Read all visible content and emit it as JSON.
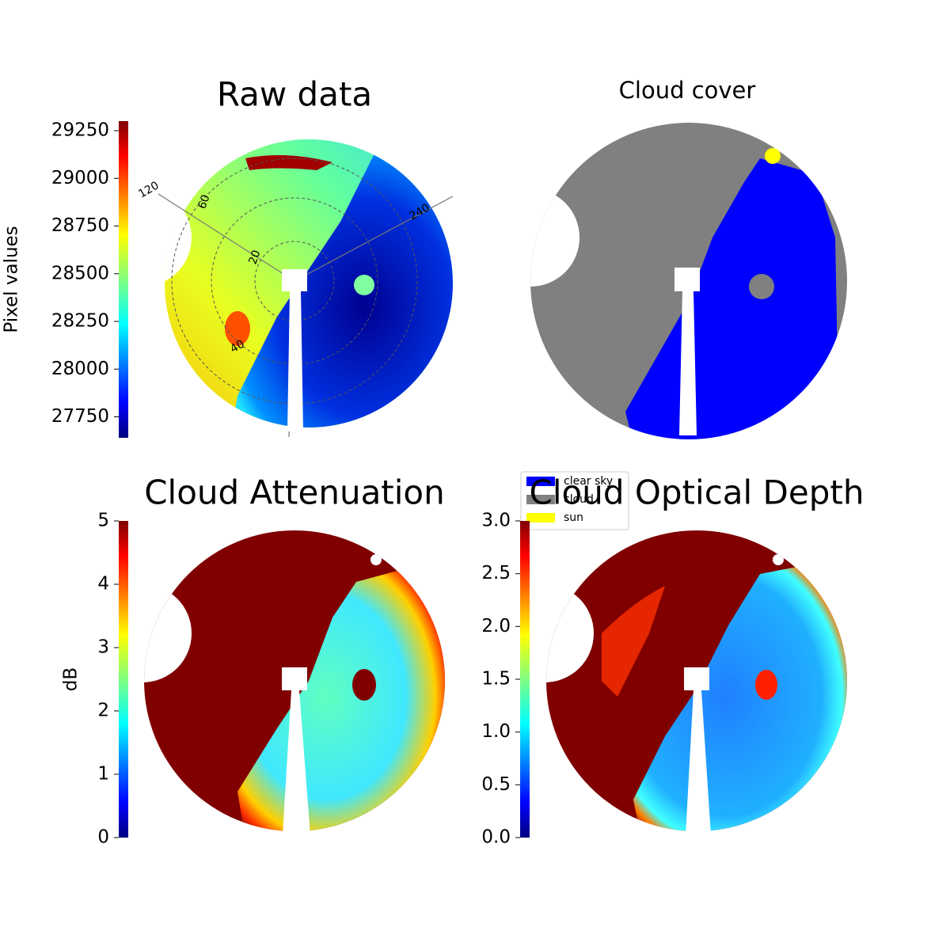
{
  "chart_data": [
    {
      "type": "image",
      "title": "Raw data",
      "colorbar_label": "Pixel values",
      "colormap": "jet",
      "clim": [
        27640,
        29300
      ],
      "cticks": [
        27750,
        28000,
        28250,
        28500,
        28750,
        29000,
        29250
      ],
      "annotations": [
        "120",
        "240",
        "20",
        "40",
        "60"
      ]
    },
    {
      "type": "categorical-image",
      "title": "Cloud cover",
      "series": [
        {
          "name": "clear sky",
          "color": "#0000ff"
        },
        {
          "name": "cloud",
          "color": "#808080"
        },
        {
          "name": "sun",
          "color": "#ffff00"
        }
      ]
    },
    {
      "type": "image",
      "title": "Cloud Attenuation",
      "colorbar_label": "dB",
      "colormap": "jet",
      "clim": [
        0,
        5
      ],
      "cticks": [
        0,
        1,
        2,
        3,
        4,
        5
      ]
    },
    {
      "type": "image",
      "title": "Cloud Optical Depth",
      "colormap": "jet",
      "clim": [
        0,
        3
      ],
      "cticks": [
        {
          "value": 0,
          "label": "0.0"
        },
        0.5,
        {
          "value": 1,
          "label": "1.0"
        },
        1.5,
        {
          "value": 2,
          "label": "2.0"
        },
        2.5,
        {
          "value": 3,
          "label": "3.0"
        }
      ]
    }
  ]
}
